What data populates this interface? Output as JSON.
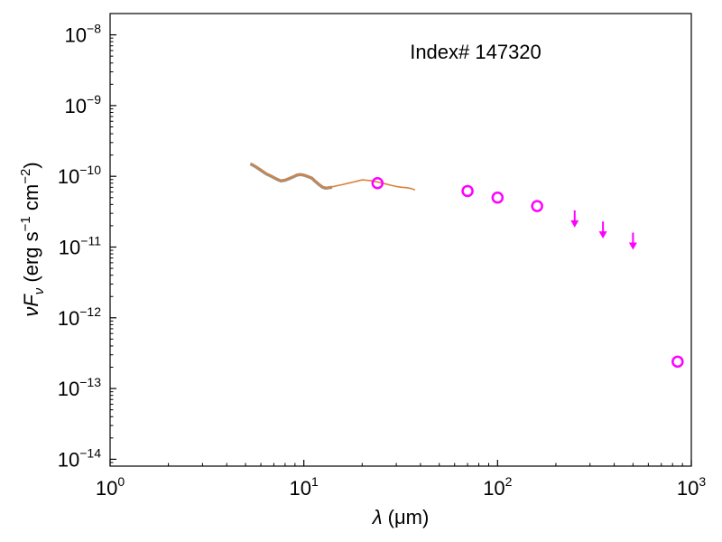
{
  "chart_data": {
    "type": "scatter",
    "xlabel": "λ (μm)",
    "ylabel": "νF_ν (erg s^-1 cm^-2)",
    "xscale": "log",
    "yscale": "log",
    "xlim": [
      1,
      1000
    ],
    "ylim": [
      8e-15,
      2e-08
    ],
    "grid": false,
    "x_ticks": [
      {
        "base": "10",
        "exp": "0",
        "value": 1
      },
      {
        "base": "10",
        "exp": "1",
        "value": 10
      },
      {
        "base": "10",
        "exp": "2",
        "value": 100
      },
      {
        "base": "10",
        "exp": "3",
        "value": 1000
      }
    ],
    "y_ticks": [
      {
        "base": "10",
        "exp": "−14",
        "value": 1e-14
      },
      {
        "base": "10",
        "exp": "−13",
        "value": 1e-13
      },
      {
        "base": "10",
        "exp": "−12",
        "value": 1e-12
      },
      {
        "base": "10",
        "exp": "−11",
        "value": 1e-11
      },
      {
        "base": "10",
        "exp": "−10",
        "value": 1e-10
      },
      {
        "base": "10",
        "exp": "−9",
        "value": 1e-09
      },
      {
        "base": "10",
        "exp": "−8",
        "value": 1e-08
      }
    ],
    "annotation": "Index# 147320",
    "colors": {
      "spectrum_gray": "#8a7f73",
      "spectrum_orange": "#d9823a",
      "photometry": "#ff00ff"
    },
    "series": [
      {
        "kind": "spectrum-band",
        "color": "#8a7f73",
        "x": [
          5.3,
          5.6,
          6.0,
          6.4,
          6.8,
          7.2,
          7.6,
          8.0,
          8.4,
          8.8,
          9.2,
          9.6,
          10.0,
          10.5,
          11.0,
          11.5,
          12.0,
          12.5,
          13.0,
          13.5,
          14.0
        ],
        "y": [
          1.5e-10,
          1.38e-10,
          1.22e-10,
          1.08e-10,
          1e-10,
          9.2e-11,
          8.6e-11,
          8.8e-11,
          9.3e-11,
          9.8e-11,
          1.04e-10,
          1.06e-10,
          1.04e-10,
          9.9e-11,
          9.4e-11,
          8.4e-11,
          7.6e-11,
          7e-11,
          6.8e-11,
          6.9e-11,
          7e-11
        ]
      },
      {
        "kind": "spectrum-line",
        "color": "#d9823a",
        "x": [
          5.3,
          5.6,
          6.0,
          6.4,
          6.8,
          7.2,
          7.6,
          8.0,
          8.4,
          8.8,
          9.2,
          9.6,
          10.0,
          10.5,
          11.0,
          11.5,
          12.0,
          12.5,
          13.0,
          13.5,
          14.0,
          15.0,
          16.0,
          17.0,
          18.0,
          19.0,
          20.0,
          21.0,
          22.0,
          23.0,
          24.0,
          26.0,
          28.0,
          30.0,
          32.0,
          34.0,
          36.0,
          37.5
        ],
        "y": [
          1.52e-10,
          1.4e-10,
          1.24e-10,
          1.1e-10,
          1.02e-10,
          9.4e-11,
          8.8e-11,
          9e-11,
          9.5e-11,
          1e-10,
          1.05e-10,
          1.07e-10,
          1.05e-10,
          1e-10,
          9.5e-11,
          8.5e-11,
          7.7e-11,
          7.1e-11,
          6.9e-11,
          7e-11,
          7.1e-11,
          7.4e-11,
          7.7e-11,
          8e-11,
          8.3e-11,
          8.6e-11,
          8.9e-11,
          8.8e-11,
          8.7e-11,
          8.5e-11,
          8.3e-11,
          7.9e-11,
          7.5e-11,
          7.2e-11,
          7e-11,
          6.9e-11,
          6.7e-11,
          6.4e-11
        ]
      },
      {
        "kind": "photometry",
        "color": "#ff00ff",
        "marker": "open-circle",
        "x": [
          24,
          70,
          100,
          160,
          850
        ],
        "y": [
          8e-11,
          6.2e-11,
          5e-11,
          3.8e-11,
          2.4e-13
        ]
      },
      {
        "kind": "upper-limit",
        "color": "#ff00ff",
        "marker": "down-arrow",
        "x": [
          250,
          350,
          500
        ],
        "y": [
          3.3e-11,
          2.3e-11,
          1.6e-11
        ]
      }
    ]
  }
}
